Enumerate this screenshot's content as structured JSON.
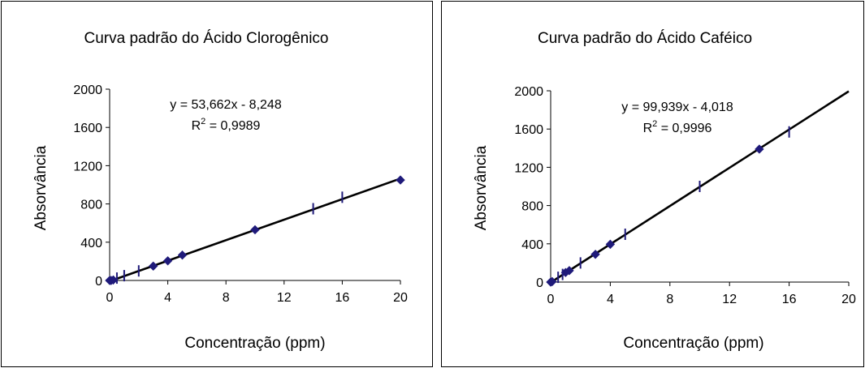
{
  "chart_data": [
    {
      "type": "scatter",
      "title": "Curva padrão do Ácido Clorogênico",
      "xlabel": "Concentração (ppm)",
      "ylabel": "Absorvância",
      "xlim": [
        0,
        20
      ],
      "ylim": [
        0,
        2000
      ],
      "xticks": [
        "0",
        "4",
        "8",
        "12",
        "16",
        "20"
      ],
      "yticks": [
        "0",
        "400",
        "800",
        "1200",
        "1600",
        "2000"
      ],
      "grid": false,
      "marker_color": "#1f1a7a",
      "line_color": "#000000",
      "equation": "y = 53,662x - 8,248",
      "r2_prefix": "R",
      "r2_exp": "2",
      "r2_value": " = 0,9989",
      "fit": {
        "slope": 53.662,
        "intercept": -8.248
      },
      "series": [
        {
          "marker": "diamond",
          "x": [
            0,
            0.1,
            0.25,
            3,
            4,
            5,
            10,
            20
          ],
          "y": [
            0,
            0,
            5,
            150,
            205,
            265,
            530,
            1050
          ]
        },
        {
          "marker": "dash",
          "x": [
            0.5,
            1,
            2,
            14,
            16
          ],
          "y": [
            25,
            50,
            100,
            750,
            870
          ]
        }
      ]
    },
    {
      "type": "scatter",
      "title": "Curva padrão do Ácido Caféico",
      "xlabel": "Concentração (ppm)",
      "ylabel": "Absorvância",
      "xlim": [
        0,
        20
      ],
      "ylim": [
        0,
        2000
      ],
      "xticks": [
        "0",
        "4",
        "8",
        "12",
        "16",
        "20"
      ],
      "yticks": [
        "0",
        "400",
        "800",
        "1200",
        "1600",
        "2000"
      ],
      "grid": false,
      "marker_color": "#1f1a7a",
      "line_color": "#000000",
      "equation": "y = 99,939x - 4,018",
      "r2_prefix": "R",
      "r2_exp": "2",
      "r2_value": " = 0,9996",
      "fit": {
        "slope": 99.939,
        "intercept": -4.018
      },
      "series": [
        {
          "marker": "diamond",
          "x": [
            0,
            0.1,
            1,
            1.25,
            3,
            4,
            14
          ],
          "y": [
            0,
            5,
            100,
            120,
            290,
            395,
            1390
          ]
        },
        {
          "marker": "dash",
          "x": [
            0.5,
            0.8,
            2,
            5,
            10,
            16
          ],
          "y": [
            50,
            80,
            200,
            500,
            1000,
            1570
          ]
        }
      ]
    }
  ]
}
